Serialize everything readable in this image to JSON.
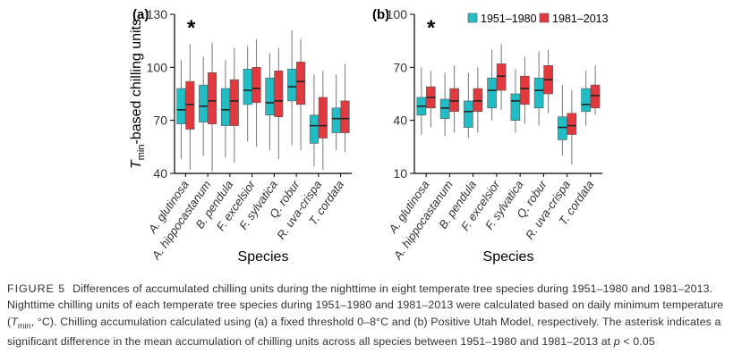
{
  "chart_data": [
    {
      "type": "box",
      "label": "(a)",
      "annotation": "*",
      "ylabel": {
        "main": "T",
        "sub": "min",
        "rest": "-based chilling units"
      },
      "xlabel": "Species",
      "categories": [
        "A. glutinosa",
        "A. hippocastanum",
        "B. pendula",
        "F. excelsior",
        "F. sylvatica",
        "Q. robur",
        "R. uva-crispa",
        "T. cordata"
      ],
      "ylim": [
        40,
        130
      ],
      "yticks": [
        40,
        70,
        100,
        130
      ],
      "legend": false,
      "series": [
        {
          "color": "#22bcc4",
          "values": [
            [
              48,
              68,
              76,
              88,
              104
            ],
            [
              50,
              69,
              78,
              90,
              106
            ],
            [
              49,
              67,
              76,
              88,
              104
            ],
            [
              58,
              79,
              87,
              99,
              112
            ],
            [
              53,
              73,
              80,
              94,
              108
            ],
            [
              56,
              81,
              89,
              99,
              121
            ],
            [
              44,
              57,
              67,
              73,
              96
            ],
            [
              53,
              63,
              71,
              77,
              96
            ]
          ]
        },
        {
          "color": "#e2393f",
          "values": [
            [
              42,
              65,
              79,
              92,
              113
            ],
            [
              41,
              68,
              81,
              97,
              114
            ],
            [
              46,
              67,
              81,
              93,
              111
            ],
            [
              55,
              80,
              88,
              100,
              116
            ],
            [
              48,
              72,
              81,
              98,
              111
            ],
            [
              53,
              79,
              92,
              103,
              116
            ],
            [
              42,
              60,
              67,
              83,
              98
            ],
            [
              52,
              63,
              71,
              81,
              102
            ]
          ]
        }
      ]
    },
    {
      "type": "box",
      "label": "(b)",
      "annotation": "*",
      "xlabel": "Species",
      "categories": [
        "A. glutinosa",
        "A. hippocastanum",
        "B. pendula",
        "F. excelsior",
        "F. sylvatica",
        "Q. robur",
        "R. uva-crispa",
        "T. cordata"
      ],
      "ylim": [
        10,
        100
      ],
      "yticks": [
        10,
        40,
        70,
        100
      ],
      "legend": "top-right",
      "series": [
        {
          "name": "1951–1980",
          "color": "#22bcc4",
          "values": [
            [
              32,
              43,
              48,
              53,
              70
            ],
            [
              31,
              41,
              47,
              52,
              67
            ],
            [
              30,
              36,
              45,
              51,
              67
            ],
            [
              40,
              47,
              57,
              64,
              80
            ],
            [
              33,
              40,
              51,
              55,
              69
            ],
            [
              37,
              47,
              57,
              64,
              79
            ],
            [
              20,
              29,
              36,
              42,
              60
            ],
            [
              37,
              45,
              49,
              58,
              68
            ]
          ]
        },
        {
          "name": "1981–2013",
          "color": "#e2393f",
          "values": [
            [
              36,
              47,
              53,
              59,
              68
            ],
            [
              33,
              45,
              51,
              58,
              71
            ],
            [
              33,
              45,
              51,
              58,
              70
            ],
            [
              46,
              57,
              65,
              72,
              83
            ],
            [
              38,
              49,
              58,
              65,
              76
            ],
            [
              44,
              55,
              63,
              71,
              80
            ],
            [
              15,
              32,
              37,
              44,
              57
            ],
            [
              43,
              47,
              54,
              60,
              71
            ]
          ]
        }
      ]
    }
  ],
  "caption": {
    "label": "FIGURE 5",
    "text1": "Differences of accumulated chilling units during the nighttime in eight temperate tree species during 1951–1980 and 1981–2013. Nighttime chilling units of each temperate tree species during 1951–1980 and 1981–2013 were calculated based on daily minimum temperature (",
    "t": "T",
    "sub": "min",
    "text2": ", °C). Chilling accumulation calculated using (a) a fixed threshold 0–8°C and (b) Positive Utah Model, respectively. The asterisk indicates a significant difference in the mean accumulation of chilling units across all species between 1951–1980 and 1981–2013 at ",
    "p": "p",
    "text3": " < 0.05"
  }
}
